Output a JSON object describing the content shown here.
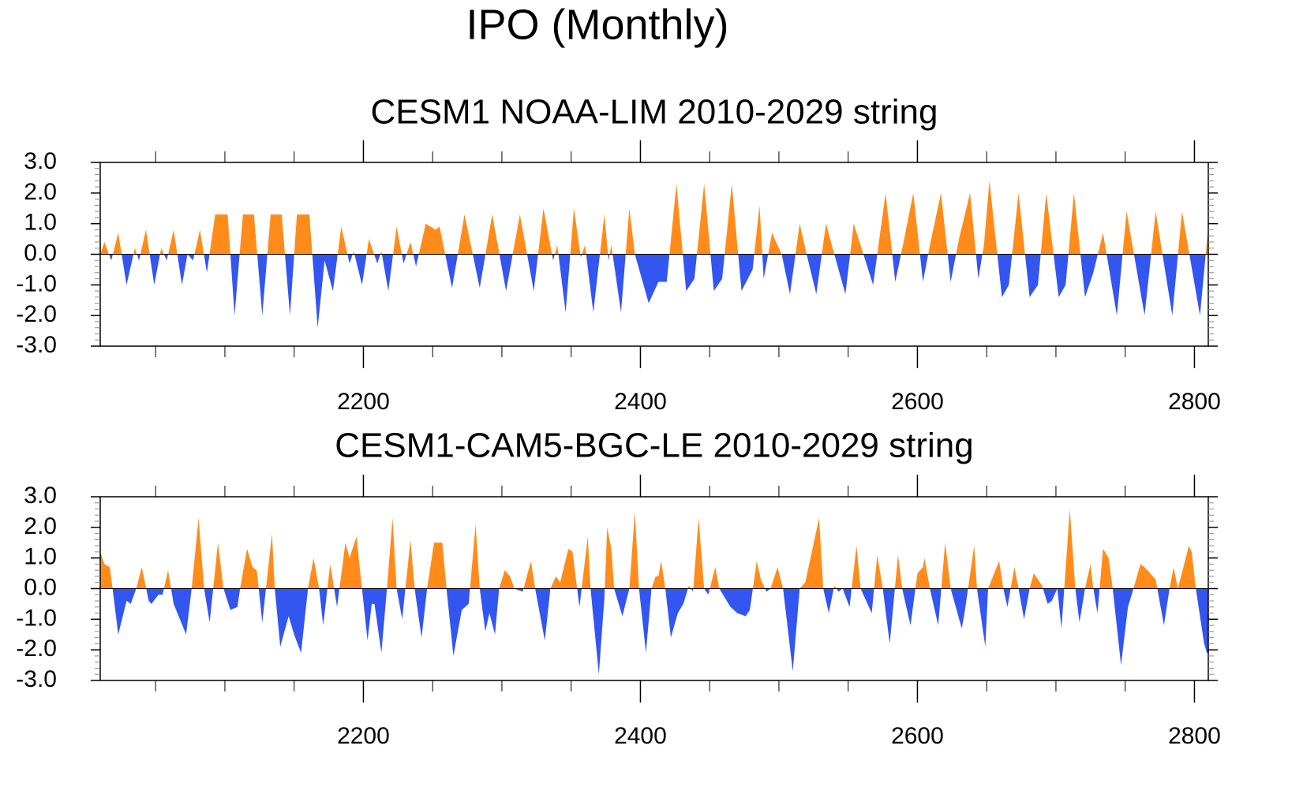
{
  "title": "IPO (Monthly)",
  "chart_data": [
    {
      "type": "area",
      "title": "CESM1 NOAA-LIM 2010-2029 string",
      "color_positive": "#ff8c1a",
      "color_negative": "#3355f0",
      "xlim": [
        2010,
        2810
      ],
      "xticks": [
        2200,
        2400,
        2600,
        2800
      ],
      "xminorticks": [
        2050,
        2100,
        2150,
        2250,
        2300,
        2350,
        2450,
        2500,
        2550,
        2650,
        2700,
        2750
      ],
      "ylim": [
        -3,
        3
      ],
      "yticks": [
        {
          "value": -3,
          "label": "-3.0"
        },
        {
          "value": -2,
          "label": "-2.0"
        },
        {
          "value": -1,
          "label": "-1.0"
        },
        {
          "value": 0,
          "label": "0.0"
        },
        {
          "value": 1,
          "label": "1.0"
        },
        {
          "value": 2,
          "label": "2.0"
        },
        {
          "value": 3,
          "label": "3.0"
        }
      ],
      "yminorticks": [
        -2.8,
        -2.6,
        -2.4,
        -2.2,
        -1.8,
        -1.6,
        -1.4,
        -1.2,
        -0.8,
        -0.6,
        -0.4,
        -0.2,
        0.2,
        0.4,
        0.6,
        0.8,
        1.2,
        1.4,
        1.6,
        1.8,
        2.2,
        2.4,
        2.6,
        2.8
      ],
      "x": [
        2010,
        2013,
        2018,
        2023,
        2029,
        2035,
        2038,
        2043,
        2049,
        2054,
        2058,
        2063,
        2069,
        2073,
        2077,
        2082,
        2087,
        2093,
        2102,
        2107,
        2113,
        2121,
        2127,
        2133,
        2141,
        2147,
        2152,
        2161,
        2167,
        2172,
        2178,
        2184,
        2190,
        2193,
        2199,
        2204,
        2210,
        2213,
        2218,
        2224,
        2229,
        2234,
        2238,
        2245,
        2252,
        2255,
        2264,
        2273,
        2284,
        2293,
        2303,
        2313,
        2323,
        2330,
        2337,
        2340,
        2346,
        2352,
        2357,
        2360,
        2366,
        2374,
        2377,
        2379,
        2386,
        2392,
        2396,
        2406,
        2413,
        2419,
        2426,
        2433,
        2439,
        2446,
        2453,
        2459,
        2466,
        2473,
        2481,
        2486,
        2489,
        2495,
        2502,
        2508,
        2515,
        2520,
        2527,
        2534,
        2540,
        2548,
        2554,
        2561,
        2568,
        2577,
        2584,
        2590,
        2597,
        2604,
        2609,
        2617,
        2624,
        2630,
        2638,
        2644,
        2648,
        2652,
        2661,
        2666,
        2673,
        2681,
        2687,
        2693,
        2702,
        2707,
        2713,
        2721,
        2727,
        2734,
        2744,
        2751,
        2764,
        2772,
        2784,
        2791,
        2804,
        2810
      ],
      "values": [
        0.0,
        0.4,
        -0.2,
        0.7,
        -1.0,
        0.2,
        -0.2,
        0.8,
        -1.0,
        0.2,
        -0.2,
        0.8,
        -1.0,
        0.0,
        -0.2,
        0.8,
        -0.6,
        1.3,
        1.3,
        -2.0,
        1.3,
        1.3,
        -2.0,
        1.3,
        1.3,
        -2.0,
        1.3,
        1.3,
        -2.4,
        -0.2,
        -1.2,
        0.9,
        -0.3,
        0.1,
        -1.0,
        0.5,
        -0.3,
        0.1,
        -1.2,
        0.9,
        -0.3,
        0.4,
        -0.4,
        1.0,
        0.8,
        0.9,
        -1.1,
        1.3,
        -1.1,
        1.3,
        -1.2,
        1.3,
        -1.2,
        1.5,
        -0.2,
        0.3,
        -1.9,
        1.5,
        -0.1,
        0.3,
        -1.9,
        1.3,
        -0.2,
        0.3,
        -1.9,
        1.5,
        0.0,
        -1.6,
        -0.9,
        -0.9,
        2.3,
        -1.2,
        -0.8,
        2.3,
        -1.2,
        -0.8,
        2.3,
        -1.2,
        -0.5,
        1.6,
        -0.8,
        0.7,
        0.0,
        -1.3,
        1.0,
        0.0,
        -1.3,
        1.0,
        0.0,
        -1.3,
        1.0,
        0.0,
        -1.0,
        2.0,
        -0.9,
        0.4,
        2.0,
        -0.9,
        0.3,
        2.0,
        -0.9,
        0.5,
        2.0,
        -0.8,
        0.3,
        2.4,
        -1.4,
        -1.0,
        2.0,
        -1.4,
        -1.0,
        2.0,
        -1.4,
        -1.0,
        2.0,
        -1.4,
        -0.6,
        0.7,
        -2.0,
        1.4,
        -2.0,
        1.4,
        -2.0,
        1.4,
        -2.0,
        0.9
      ]
    },
    {
      "type": "area",
      "title": "CESM1-CAM5-BGC-LE 2010-2029 string",
      "color_positive": "#ff8c1a",
      "color_negative": "#3355f0",
      "xlim": [
        2010,
        2810
      ],
      "xticks": [
        2200,
        2400,
        2600,
        2800
      ],
      "xminorticks": [
        2050,
        2100,
        2150,
        2250,
        2300,
        2350,
        2450,
        2500,
        2550,
        2650,
        2700,
        2750
      ],
      "ylim": [
        -3,
        3
      ],
      "yticks": [
        {
          "value": -3,
          "label": "-3.0"
        },
        {
          "value": -2,
          "label": "-2.0"
        },
        {
          "value": -1,
          "label": "-1.0"
        },
        {
          "value": 0,
          "label": "0.0"
        },
        {
          "value": 1,
          "label": "1.0"
        },
        {
          "value": 2,
          "label": "2.0"
        },
        {
          "value": 3,
          "label": "3.0"
        }
      ],
      "yminorticks": [
        -2.8,
        -2.6,
        -2.4,
        -2.2,
        -1.8,
        -1.6,
        -1.4,
        -1.2,
        -0.8,
        -0.6,
        -0.4,
        -0.2,
        0.2,
        0.4,
        0.6,
        0.8,
        1.2,
        1.4,
        1.6,
        1.8,
        2.2,
        2.4,
        2.6,
        2.8
      ],
      "x": [
        2010,
        2013,
        2017,
        2023,
        2029,
        2032,
        2036,
        2040,
        2045,
        2047,
        2052,
        2055,
        2059,
        2063,
        2072,
        2076,
        2081,
        2085,
        2089,
        2095,
        2099,
        2104,
        2109,
        2111,
        2116,
        2120,
        2123,
        2127,
        2134,
        2136,
        2140,
        2146,
        2150,
        2155,
        2160,
        2164,
        2168,
        2171,
        2176,
        2181,
        2187,
        2190,
        2195,
        2199,
        2203,
        2206,
        2208,
        2213,
        2217,
        2221,
        2224,
        2228,
        2234,
        2237,
        2242,
        2246,
        2251,
        2257,
        2260,
        2265,
        2271,
        2276,
        2281,
        2284,
        2288,
        2291,
        2295,
        2298,
        2302,
        2306,
        2309,
        2315,
        2321,
        2324,
        2331,
        2335,
        2339,
        2342,
        2348,
        2351,
        2356,
        2362,
        2364,
        2370,
        2374,
        2376,
        2379,
        2381,
        2387,
        2392,
        2396,
        2399,
        2404,
        2408,
        2411,
        2413,
        2415,
        2418,
        2422,
        2427,
        2431,
        2435,
        2438,
        2442,
        2446,
        2449,
        2454,
        2457,
        2465,
        2470,
        2476,
        2479,
        2484,
        2487,
        2491,
        2494,
        2499,
        2503,
        2510,
        2515,
        2519,
        2529,
        2532,
        2536,
        2540,
        2543,
        2546,
        2551,
        2556,
        2559,
        2567,
        2571,
        2575,
        2580,
        2586,
        2589,
        2595,
        2600,
        2604,
        2605,
        2609,
        2615,
        2620,
        2624,
        2632,
        2634,
        2641,
        2643,
        2649,
        2651,
        2659,
        2662,
        2665,
        2670,
        2673,
        2677,
        2681,
        2684,
        2690,
        2694,
        2697,
        2701,
        2704,
        2710,
        2714,
        2717,
        2721,
        2725,
        2727,
        2730,
        2734,
        2738,
        2741,
        2747,
        2752,
        2756,
        2761,
        2764,
        2768,
        2772,
        2778,
        2782,
        2785,
        2788,
        2796,
        2798,
        2801,
        2804,
        2807,
        2809,
        2810
      ],
      "values": [
        1.2,
        0.8,
        0.7,
        -1.5,
        -0.4,
        -0.5,
        0.0,
        0.7,
        -0.4,
        -0.5,
        -0.2,
        -0.2,
        0.6,
        -0.5,
        -1.5,
        0.0,
        2.3,
        0.0,
        -1.1,
        1.5,
        0.0,
        -0.7,
        -0.6,
        0.0,
        1.3,
        0.7,
        0.6,
        -1.1,
        1.8,
        0.0,
        -1.9,
        -0.9,
        -1.5,
        -2.1,
        0.0,
        1.0,
        0.0,
        -1.2,
        0.8,
        -0.6,
        1.5,
        1.0,
        1.7,
        0.0,
        -1.7,
        -0.5,
        -0.5,
        -2.1,
        0.0,
        2.3,
        0.0,
        -1.0,
        1.6,
        0.0,
        -1.6,
        0.0,
        1.5,
        1.5,
        0.0,
        -2.2,
        -0.7,
        -0.5,
        2.1,
        0.0,
        -1.4,
        -0.8,
        -1.5,
        0.0,
        0.6,
        0.4,
        0.0,
        -0.1,
        0.9,
        0.0,
        -1.7,
        0.0,
        0.4,
        0.2,
        1.3,
        1.2,
        -0.6,
        1.7,
        0.0,
        -2.8,
        -0.3,
        2.0,
        1.3,
        0.0,
        -0.9,
        0.0,
        2.5,
        0.0,
        -2.1,
        0.0,
        0.4,
        0.4,
        0.9,
        0.0,
        -1.6,
        -0.8,
        -0.5,
        0.1,
        -0.1,
        2.3,
        0.0,
        -0.2,
        0.7,
        0.0,
        -0.6,
        -0.8,
        -0.9,
        -0.7,
        0.9,
        0.3,
        -0.1,
        0.0,
        0.7,
        0.0,
        -2.7,
        0.0,
        0.2,
        2.3,
        0.0,
        -0.8,
        0.1,
        -0.1,
        0.0,
        -0.6,
        1.4,
        0.0,
        -0.8,
        1.1,
        0.0,
        -1.8,
        1.1,
        0.0,
        -1.2,
        0.5,
        0.7,
        1.0,
        0.0,
        -1.2,
        1.5,
        0.0,
        -1.3,
        -0.8,
        1.4,
        0.0,
        -1.9,
        0.0,
        0.9,
        0.0,
        -0.6,
        0.7,
        0.0,
        -1.0,
        0.0,
        0.5,
        0.1,
        -0.5,
        -0.4,
        0.0,
        -1.3,
        2.6,
        0.0,
        -1.1,
        0.0,
        0.8,
        0.0,
        -0.8,
        1.3,
        1.0,
        0.0,
        -2.5,
        -0.6,
        0.0,
        0.8,
        0.7,
        0.5,
        0.3,
        -1.2,
        0.0,
        0.7,
        0.0,
        1.4,
        1.2,
        0.0,
        -0.9,
        -1.8,
        -2.1,
        -2.1
      ]
    }
  ]
}
